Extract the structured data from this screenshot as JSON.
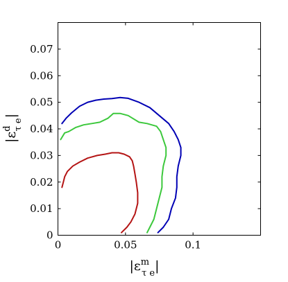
{
  "chart_data": {
    "type": "line",
    "xlabel": {
      "base": "|ε",
      "sup": "m",
      "sub": "τ e",
      "close": "|"
    },
    "ylabel": {
      "base": "|ε",
      "sup": "d",
      "sub": "τ e",
      "close": "|"
    },
    "xlim": [
      0,
      0.15
    ],
    "ylim": [
      0,
      0.08
    ],
    "xticks": [
      0,
      0.05,
      0.1
    ],
    "xtick_labels": [
      "0",
      "0.05",
      "0.1"
    ],
    "yticks": [
      0,
      0.01,
      0.02,
      0.03,
      0.04,
      0.05,
      0.06,
      0.07
    ],
    "ytick_labels": [
      "0",
      "0.01",
      "0.02",
      "0.03",
      "0.04",
      "0.05",
      "0.06",
      "0.07"
    ],
    "grid": false,
    "series": [
      {
        "color": "#0000b4",
        "x": [
          0.074,
          0.078,
          0.082,
          0.084,
          0.087,
          0.088,
          0.088,
          0.089,
          0.091,
          0.091,
          0.089,
          0.086,
          0.082,
          0.075,
          0.068,
          0.06,
          0.052,
          0.046,
          0.04,
          0.034,
          0.028,
          0.022,
          0.016,
          0.01,
          0.006,
          0.003
        ],
        "y": [
          0.001,
          0.003,
          0.006,
          0.01,
          0.014,
          0.018,
          0.022,
          0.026,
          0.03,
          0.033,
          0.036,
          0.039,
          0.042,
          0.045,
          0.048,
          0.05,
          0.0515,
          0.0518,
          0.0514,
          0.0512,
          0.0508,
          0.05,
          0.0485,
          0.046,
          0.044,
          0.042
        ]
      },
      {
        "color": "#3cc83c",
        "x": [
          0.066,
          0.068,
          0.071,
          0.073,
          0.075,
          0.077,
          0.077,
          0.078,
          0.08,
          0.08,
          0.078,
          0.076,
          0.073,
          0.066,
          0.06,
          0.052,
          0.046,
          0.041,
          0.037,
          0.031,
          0.025,
          0.019,
          0.013,
          0.008,
          0.005,
          0.002
        ],
        "y": [
          0.001,
          0.003,
          0.006,
          0.01,
          0.014,
          0.018,
          0.022,
          0.026,
          0.03,
          0.033,
          0.036,
          0.039,
          0.041,
          0.042,
          0.0425,
          0.045,
          0.0458,
          0.0458,
          0.044,
          0.0425,
          0.042,
          0.0415,
          0.0405,
          0.039,
          0.0385,
          0.036
        ]
      },
      {
        "color": "#b41414",
        "x": [
          0.047,
          0.051,
          0.054,
          0.057,
          0.059,
          0.059,
          0.058,
          0.057,
          0.056,
          0.055,
          0.053,
          0.049,
          0.045,
          0.04,
          0.035,
          0.029,
          0.022,
          0.016,
          0.011,
          0.007,
          0.005,
          0.004,
          0.003
        ],
        "y": [
          0.001,
          0.003,
          0.005,
          0.008,
          0.012,
          0.016,
          0.02,
          0.023,
          0.026,
          0.028,
          0.0295,
          0.0305,
          0.031,
          0.031,
          0.0305,
          0.03,
          0.029,
          0.0275,
          0.026,
          0.024,
          0.022,
          0.02,
          0.018
        ]
      }
    ]
  }
}
